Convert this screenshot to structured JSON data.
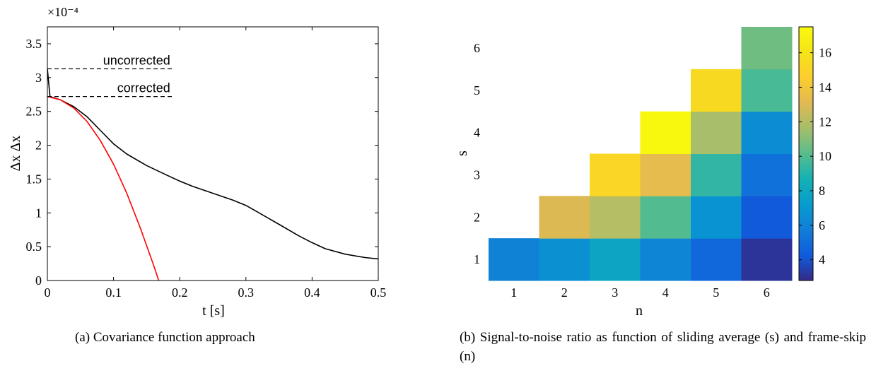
{
  "figure": {
    "caption_a": "(a)  Covariance function approach",
    "caption_b": "(b)  Signal-to-noise ratio as function of sliding average (s) and frame-skip (n)"
  },
  "chart_data": [
    {
      "id": "a",
      "type": "line",
      "xlabel": "t [s]",
      "ylabel": "Δx Δx",
      "y_exponent_label": "×10⁻⁴",
      "xlim": [
        0,
        0.5
      ],
      "ylim": [
        0,
        3.75
      ],
      "xticks": [
        0,
        0.1,
        0.2,
        0.3,
        0.4,
        0.5
      ],
      "xtick_labels": [
        "0",
        "0.1",
        "0.2",
        "0.3",
        "0.4",
        "0.5"
      ],
      "yticks": [
        0,
        0.5,
        1,
        1.5,
        2,
        2.5,
        3,
        3.5
      ],
      "ytick_labels": [
        "0",
        "0.5",
        "1",
        "1.5",
        "2",
        "2.5",
        "3",
        "3.5"
      ],
      "grid": false,
      "box": true,
      "series": [
        {
          "style": "solid",
          "color": "#000000",
          "x": [
            0,
            0.004,
            0.01,
            0.02,
            0.04,
            0.06,
            0.08,
            0.1,
            0.12,
            0.15,
            0.18,
            0.2,
            0.22,
            0.25,
            0.28,
            0.3,
            0.32,
            0.35,
            0.38,
            0.4,
            0.42,
            0.45,
            0.48,
            0.5
          ],
          "y": [
            3.13,
            2.72,
            2.7,
            2.67,
            2.57,
            2.42,
            2.22,
            2.02,
            1.87,
            1.7,
            1.56,
            1.47,
            1.39,
            1.29,
            1.19,
            1.11,
            1.0,
            0.83,
            0.66,
            0.56,
            0.47,
            0.39,
            0.34,
            0.32
          ]
        },
        {
          "style": "solid",
          "color": "#ff0000",
          "x": [
            0,
            0.02,
            0.04,
            0.06,
            0.08,
            0.1,
            0.12,
            0.14,
            0.16,
            0.17,
            0.181
          ],
          "y": [
            2.72,
            2.67,
            2.55,
            2.35,
            2.07,
            1.72,
            1.29,
            0.79,
            0.24,
            -0.05,
            -0.36
          ]
        }
      ],
      "annotations": [
        {
          "text": "uncorrected",
          "y": 3.13,
          "x_from": 0,
          "x_to": 0.19,
          "line_style": "dashed"
        },
        {
          "text": "corrected",
          "y": 2.72,
          "x_from": 0,
          "x_to": 0.19,
          "line_style": "dashed"
        }
      ]
    },
    {
      "id": "b",
      "type": "heatmap",
      "xlabel": "n",
      "ylabel": "s",
      "x_categories": [
        "1",
        "2",
        "3",
        "4",
        "5",
        "6"
      ],
      "y_categories": [
        "1",
        "2",
        "3",
        "4",
        "5",
        "6"
      ],
      "colormap": "parula",
      "colorbar": {
        "min": 2.8,
        "max": 17.5,
        "ticks": [
          4,
          6,
          8,
          10,
          12,
          14,
          16
        ],
        "tick_labels": [
          "4",
          "6",
          "8",
          "10",
          "12",
          "14",
          "16"
        ]
      },
      "cells": [
        {
          "n": 1,
          "s": 1,
          "value": 6.0
        },
        {
          "n": 2,
          "s": 1,
          "value": 6.7
        },
        {
          "n": 3,
          "s": 1,
          "value": 7.8
        },
        {
          "n": 4,
          "s": 1,
          "value": 6.1
        },
        {
          "n": 5,
          "s": 1,
          "value": 4.8
        },
        {
          "n": 6,
          "s": 1,
          "value": 3.1
        },
        {
          "n": 2,
          "s": 2,
          "value": 13.0
        },
        {
          "n": 3,
          "s": 2,
          "value": 12.0
        },
        {
          "n": 4,
          "s": 2,
          "value": 10.0
        },
        {
          "n": 5,
          "s": 2,
          "value": 6.8
        },
        {
          "n": 6,
          "s": 2,
          "value": 4.2
        },
        {
          "n": 3,
          "s": 3,
          "value": 15.2
        },
        {
          "n": 4,
          "s": 3,
          "value": 13.3
        },
        {
          "n": 5,
          "s": 3,
          "value": 9.3
        },
        {
          "n": 6,
          "s": 3,
          "value": 5.2
        },
        {
          "n": 4,
          "s": 4,
          "value": 17.3
        },
        {
          "n": 5,
          "s": 4,
          "value": 11.7
        },
        {
          "n": 6,
          "s": 4,
          "value": 6.5
        },
        {
          "n": 5,
          "s": 5,
          "value": 15.3
        },
        {
          "n": 6,
          "s": 5,
          "value": 9.8
        },
        {
          "n": 6,
          "s": 6,
          "value": 10.6
        }
      ]
    }
  ]
}
